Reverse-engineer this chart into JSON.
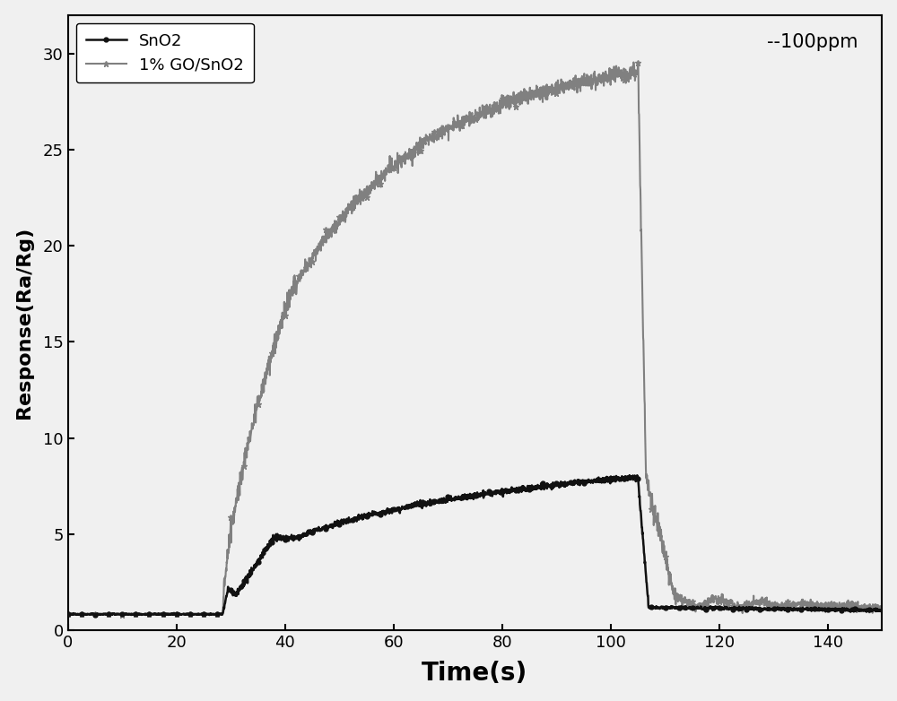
{
  "title": "",
  "xlabel": "Time(s)",
  "ylabel": "Response(Ra/Rg)",
  "annotation": "--100ppm",
  "xlim": [
    0,
    150
  ],
  "ylim": [
    0,
    32
  ],
  "xticks": [
    0,
    20,
    40,
    60,
    80,
    100,
    120,
    140
  ],
  "yticks": [
    0,
    5,
    10,
    15,
    20,
    25,
    30
  ],
  "line1_label": "SnO2",
  "line1_color": "#111111",
  "line2_label": "1% GO/SnO2",
  "line2_color": "#808080",
  "background_color": "#f0f0f0",
  "figsize": [
    10.0,
    7.82
  ],
  "dpi": 100
}
